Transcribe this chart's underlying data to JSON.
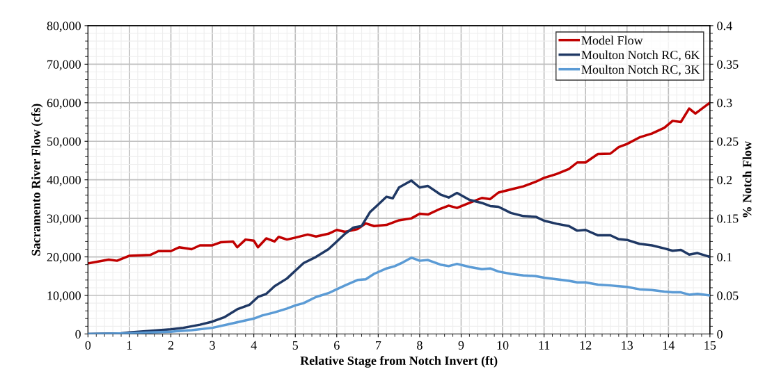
{
  "chart_data": {
    "type": "line",
    "xlabel": "Relative Stage from Notch Invert (ft)",
    "ylabel": "Sacramento River Flow (cfs)",
    "y2label": "% Notch Flow",
    "xlim": [
      0,
      15
    ],
    "xticks": [
      0,
      1,
      2,
      3,
      4,
      5,
      6,
      7,
      8,
      9,
      10,
      11,
      12,
      13,
      14,
      15
    ],
    "ylim": [
      0,
      80000
    ],
    "yticks": [
      {
        "value": 0,
        "label": "0"
      },
      {
        "value": 10000,
        "label": "10,000"
      },
      {
        "value": 20000,
        "label": "20,000"
      },
      {
        "value": 30000,
        "label": "30,000"
      },
      {
        "value": 40000,
        "label": "40,000"
      },
      {
        "value": 50000,
        "label": "50,000"
      },
      {
        "value": 60000,
        "label": "60,000"
      },
      {
        "value": 70000,
        "label": "70,000"
      },
      {
        "value": 80000,
        "label": "80,000"
      }
    ],
    "y2lim": [
      0,
      0.4
    ],
    "y2ticks": [
      0,
      0.05,
      0.1,
      0.15,
      0.2,
      0.25,
      0.3,
      0.35,
      0.4
    ],
    "grid": true,
    "legend": "top right",
    "line_style": "solid",
    "marker": "none",
    "series": [
      {
        "name": "Model Flow",
        "color": "#c00000",
        "x": [
          0,
          0.5,
          0.7,
          1,
          1.5,
          1.7,
          2,
          2.2,
          2.5,
          2.7,
          3,
          3.2,
          3.5,
          3.6,
          3.8,
          4,
          4.1,
          4.3,
          4.5,
          4.6,
          4.8,
          5,
          5.3,
          5.5,
          5.8,
          6,
          6.2,
          6.5,
          6.7,
          6.9,
          7.2,
          7.5,
          7.8,
          8,
          8.2,
          8.5,
          8.7,
          8.9,
          9.2,
          9.5,
          9.7,
          9.9,
          10.2,
          10.5,
          10.8,
          11,
          11.3,
          11.6,
          11.8,
          12,
          12.3,
          12.6,
          12.8,
          13,
          13.3,
          13.6,
          13.9,
          14.1,
          14.3,
          14.5,
          14.65,
          15
        ],
        "values": [
          18300,
          19300,
          19000,
          20300,
          20500,
          21500,
          21500,
          22500,
          22000,
          23000,
          23000,
          23800,
          24000,
          22500,
          24500,
          24200,
          22500,
          24800,
          24000,
          25200,
          24500,
          25000,
          25800,
          25300,
          26000,
          27000,
          26500,
          27200,
          28700,
          28000,
          28300,
          29500,
          30000,
          31200,
          31000,
          32500,
          33300,
          32700,
          34000,
          35300,
          35000,
          36700,
          37500,
          38300,
          39500,
          40500,
          41500,
          42800,
          44500,
          44500,
          46700,
          46800,
          48500,
          49300,
          51000,
          52000,
          53500,
          55300,
          55000,
          58500,
          57200,
          60000
        ]
      },
      {
        "name": "Moulton Notch RC, 6K",
        "color": "#1f3864",
        "axis": "y2",
        "x": [
          0,
          0.8,
          1,
          1.5,
          2,
          2.3,
          2.7,
          3,
          3.3,
          3.6,
          3.9,
          4.1,
          4.3,
          4.5,
          4.8,
          5,
          5.2,
          5.5,
          5.8,
          6,
          6.2,
          6.4,
          6.6,
          6.8,
          7,
          7.2,
          7.35,
          7.5,
          7.8,
          8,
          8.2,
          8.5,
          8.7,
          8.9,
          9.2,
          9.5,
          9.7,
          9.9,
          10.2,
          10.5,
          10.8,
          11,
          11.3,
          11.6,
          11.8,
          12,
          12.3,
          12.6,
          12.8,
          13,
          13.3,
          13.6,
          13.9,
          14.1,
          14.3,
          14.5,
          14.7,
          15
        ],
        "values": [
          0,
          0.001,
          0.002,
          0.004,
          0.006,
          0.008,
          0.012,
          0.016,
          0.022,
          0.032,
          0.038,
          0.048,
          0.052,
          0.062,
          0.072,
          0.082,
          0.092,
          0.1,
          0.11,
          0.12,
          0.13,
          0.138,
          0.14,
          0.158,
          0.168,
          0.178,
          0.176,
          0.19,
          0.199,
          0.19,
          0.192,
          0.181,
          0.177,
          0.183,
          0.174,
          0.17,
          0.166,
          0.165,
          0.157,
          0.153,
          0.152,
          0.147,
          0.143,
          0.14,
          0.134,
          0.135,
          0.128,
          0.128,
          0.123,
          0.122,
          0.117,
          0.115,
          0.111,
          0.108,
          0.109,
          0.103,
          0.105,
          0.1
        ]
      },
      {
        "name": "Moulton Notch RC, 3K",
        "color": "#5b9bd5",
        "axis": "y2",
        "x": [
          0,
          1,
          1.5,
          2,
          2.5,
          3,
          3.5,
          4,
          4.2,
          4.5,
          4.8,
          5,
          5.2,
          5.5,
          5.8,
          6,
          6.2,
          6.5,
          6.7,
          6.9,
          7.2,
          7.4,
          7.6,
          7.8,
          8,
          8.2,
          8.5,
          8.7,
          8.9,
          9.2,
          9.5,
          9.7,
          9.9,
          10.2,
          10.5,
          10.8,
          11,
          11.3,
          11.6,
          11.8,
          12,
          12.3,
          12.6,
          12.8,
          13,
          13.3,
          13.6,
          13.9,
          14.1,
          14.3,
          14.5,
          14.7,
          15
        ],
        "values": [
          0,
          0.001,
          0.002,
          0.003,
          0.005,
          0.008,
          0.014,
          0.02,
          0.024,
          0.028,
          0.033,
          0.037,
          0.04,
          0.048,
          0.053,
          0.058,
          0.063,
          0.07,
          0.071,
          0.078,
          0.085,
          0.088,
          0.093,
          0.099,
          0.095,
          0.096,
          0.09,
          0.088,
          0.091,
          0.087,
          0.084,
          0.085,
          0.081,
          0.078,
          0.076,
          0.075,
          0.073,
          0.071,
          0.069,
          0.067,
          0.067,
          0.064,
          0.063,
          0.062,
          0.061,
          0.058,
          0.057,
          0.055,
          0.054,
          0.054,
          0.051,
          0.052,
          0.05
        ]
      }
    ]
  }
}
